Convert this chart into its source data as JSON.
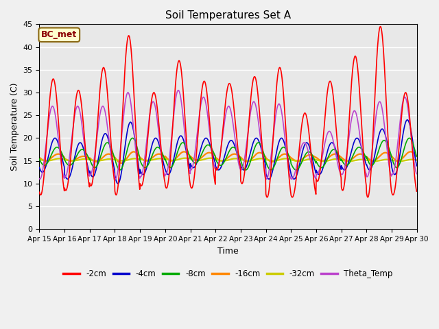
{
  "title": "Soil Temperatures Set A",
  "xlabel": "Time",
  "ylabel": "Soil Temperature (C)",
  "ylim": [
    0,
    45
  ],
  "yticks": [
    0,
    5,
    10,
    15,
    20,
    25,
    30,
    35,
    40,
    45
  ],
  "fig_bg_color": "#f0f0f0",
  "plot_bg_color": "#e8e8e8",
  "annotation_text": "BC_met",
  "annotation_bg": "#ffffcc",
  "annotation_border": "#8B6914",
  "legend_entries": [
    "-2cm",
    "-4cm",
    "-8cm",
    "-16cm",
    "-32cm",
    "Theta_Temp"
  ],
  "legend_colors": [
    "#ff0000",
    "#0000cc",
    "#00aa00",
    "#ff8800",
    "#cccc00",
    "#bb44cc"
  ],
  "n_days": 15,
  "points_per_day": 96,
  "start_day": 15
}
